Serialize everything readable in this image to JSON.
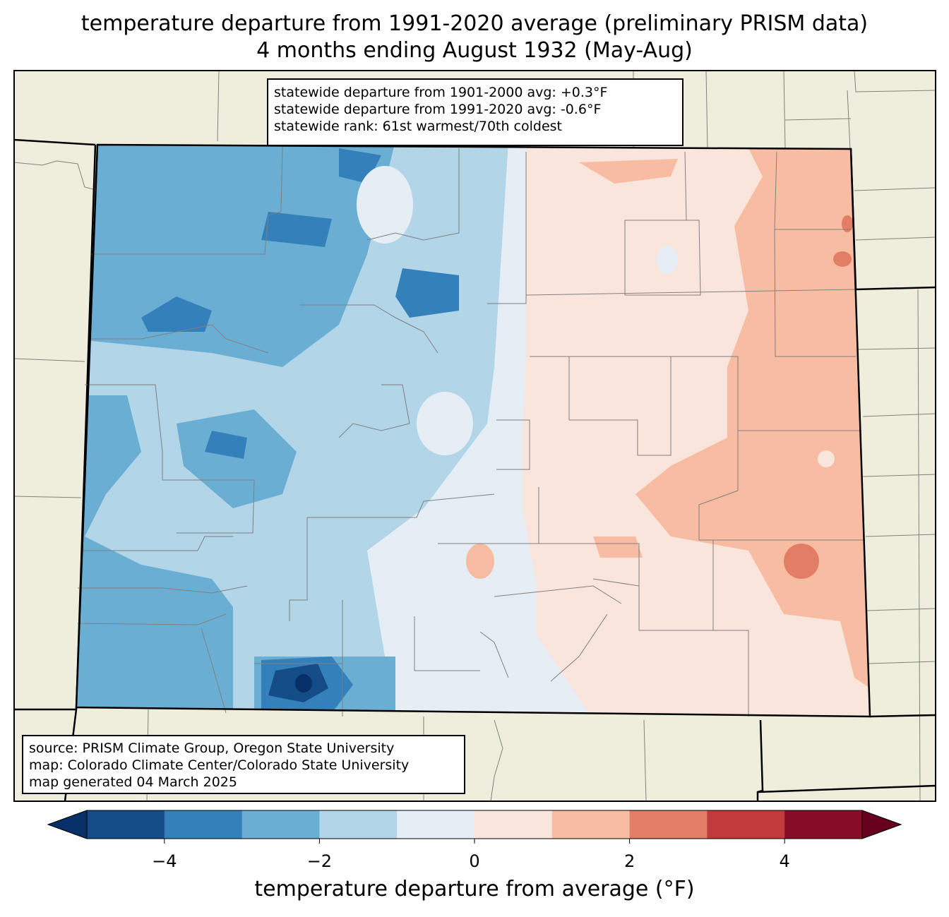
{
  "title_line1": "temperature departure from 1991-2020 average (preliminary PRISM data)",
  "title_line2": "4 months ending August 1932 (May-Aug)",
  "stats": {
    "line1": "statewide departure from 1901-2000 avg: +0.3°F",
    "line2": "statewide departure from 1991-2020 avg: -0.6°F",
    "line3": "statewide rank: 61st warmest/70th coldest"
  },
  "source": {
    "line1": "source: PRISM Climate Group, Oregon State University",
    "line2": "map: Colorado Climate Center/Colorado State University",
    "line3": "map generated 04 March 2025"
  },
  "colorbar": {
    "label": "temperature departure from average (°F)",
    "range": [
      -5,
      5
    ],
    "ticks": [
      {
        "value": -4,
        "label": "−4"
      },
      {
        "value": -2,
        "label": "−2"
      },
      {
        "value": 0,
        "label": "0"
      },
      {
        "value": 2,
        "label": "2"
      },
      {
        "value": 4,
        "label": "4"
      }
    ],
    "colors": [
      "#134c87",
      "#3480bb",
      "#6aaed3",
      "#b2d5e8",
      "#e6eef5",
      "#fae5dc",
      "#f8bca2",
      "#e27e65",
      "#c13b3c",
      "#870c25"
    ],
    "under_color": "#083068",
    "over_color": "#67001f"
  },
  "map_colors": {
    "background": "#efeedd",
    "border": "#000000",
    "county_lines": "#808080"
  }
}
